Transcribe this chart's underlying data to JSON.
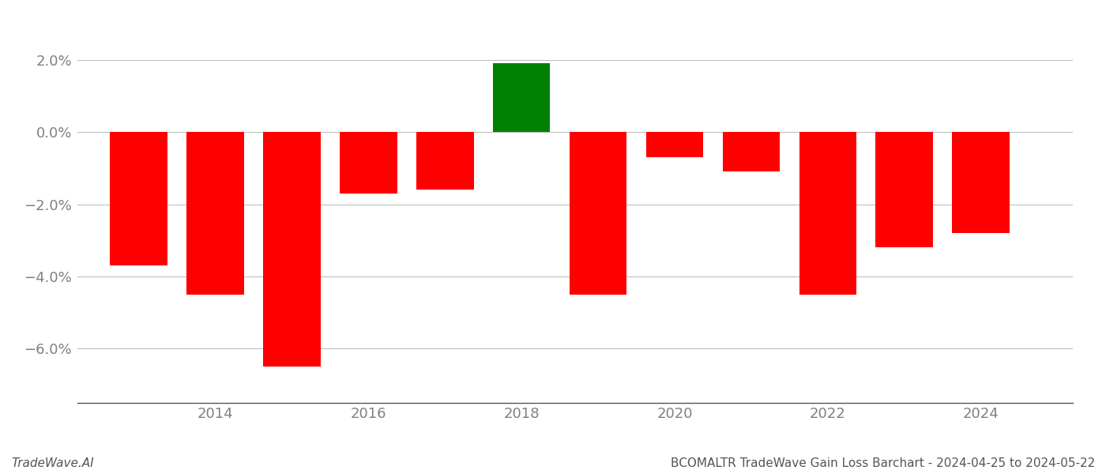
{
  "years": [
    2013,
    2014,
    2015,
    2016,
    2017,
    2018,
    2019,
    2020,
    2021,
    2022,
    2023,
    2024
  ],
  "values": [
    -0.037,
    -0.045,
    -0.065,
    -0.017,
    -0.016,
    0.019,
    -0.045,
    -0.007,
    -0.011,
    -0.045,
    -0.032,
    -0.028
  ],
  "highlight_year": 2018,
  "positive_color": "#008000",
  "negative_color": "#ff0000",
  "background_color": "#ffffff",
  "grid_color": "#c0c0c0",
  "bar_width": 0.75,
  "xlim": [
    2012.2,
    2025.2
  ],
  "ylim": [
    -0.075,
    0.03
  ],
  "yticks": [
    -0.06,
    -0.04,
    -0.02,
    0.0,
    0.02
  ],
  "xticks": [
    2014,
    2016,
    2018,
    2020,
    2022,
    2024
  ],
  "footer_left": "TradeWave.AI",
  "footer_right": "BCOMALTR TradeWave Gain Loss Barchart - 2024-04-25 to 2024-05-22",
  "footer_fontsize": 11,
  "axis_tick_color": "#808080",
  "tick_label_fontsize": 13,
  "figsize": [
    14.0,
    6.0
  ],
  "dpi": 100
}
